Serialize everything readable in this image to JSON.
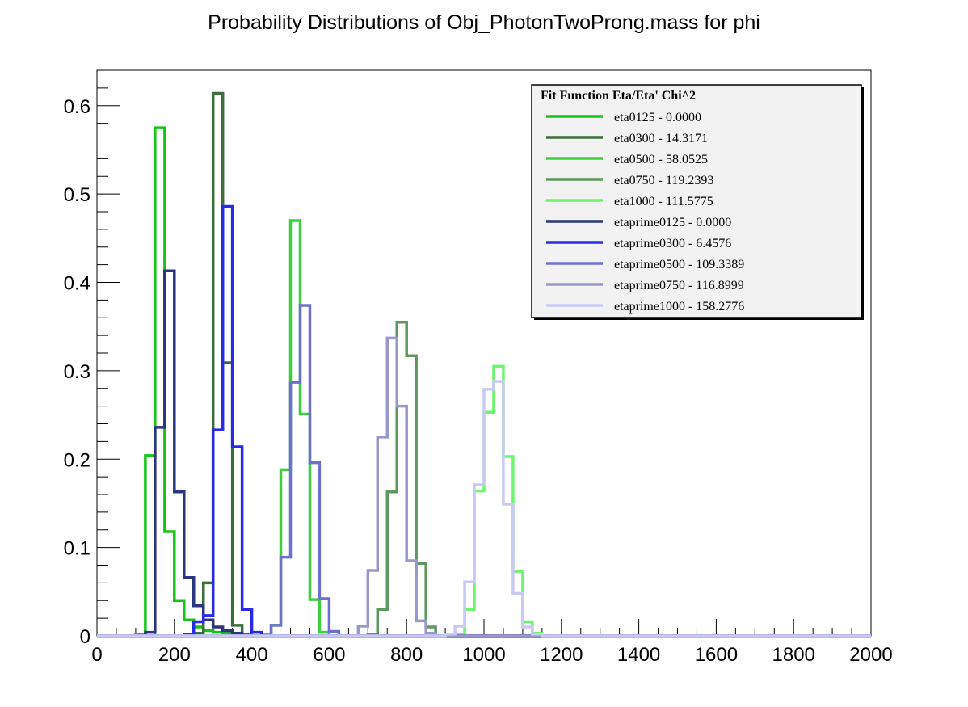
{
  "chart_data": {
    "type": "histogram",
    "title": "Probability Distributions of Obj_PhotonTwoProng.mass for phi",
    "xlabel": "",
    "ylabel": "",
    "xlim": [
      0,
      2000
    ],
    "ylim": [
      0,
      0.64
    ],
    "bin_width": 25,
    "x_ticks": [
      "0",
      "200",
      "400",
      "600",
      "800",
      "1000",
      "1200",
      "1400",
      "1600",
      "1800",
      "2000"
    ],
    "y_ticks": [
      "0",
      "0.1",
      "0.2",
      "0.3",
      "0.4",
      "0.5",
      "0.6"
    ],
    "legend": {
      "title": "Fit Function Eta/Eta' Chi^2",
      "position": "top-right",
      "entries": [
        "eta0125 - 0.0000",
        "eta0300 - 14.3171",
        "eta0500 - 58.0525",
        "eta0750 - 119.2393",
        "eta1000 - 111.5775",
        "etaprime0125 - 0.0000",
        "etaprime0300 - 6.4576",
        "etaprime0500 - 109.3389",
        "etaprime0750 - 116.8999",
        "etaprime1000 - 158.2776"
      ]
    },
    "series": [
      {
        "name": "eta0125",
        "color": "#17c417",
        "bins": [
          [
            75,
            0.0
          ],
          [
            100,
            0.002
          ],
          [
            125,
            0.204
          ],
          [
            150,
            0.575
          ],
          [
            175,
            0.118
          ],
          [
            200,
            0.04
          ],
          [
            225,
            0.018
          ],
          [
            250,
            0.01
          ],
          [
            275,
            0.006
          ],
          [
            300,
            0.004
          ],
          [
            325,
            0.003
          ],
          [
            350,
            0.002
          ]
        ]
      },
      {
        "name": "eta0300",
        "color": "#3c6e3c",
        "bins": [
          [
            225,
            0.0
          ],
          [
            250,
            0.003
          ],
          [
            275,
            0.06
          ],
          [
            300,
            0.614
          ],
          [
            325,
            0.309
          ],
          [
            350,
            0.012
          ],
          [
            375,
            0.002
          ]
        ]
      },
      {
        "name": "eta0500",
        "color": "#3ecf3e",
        "bins": [
          [
            425,
            0.002
          ],
          [
            450,
            0.012
          ],
          [
            475,
            0.188
          ],
          [
            500,
            0.47
          ],
          [
            525,
            0.251
          ],
          [
            550,
            0.041
          ],
          [
            575,
            0.004
          ]
        ]
      },
      {
        "name": "eta0750",
        "color": "#5e985e",
        "bins": [
          [
            675,
            0.0
          ],
          [
            700,
            0.002
          ],
          [
            725,
            0.03
          ],
          [
            750,
            0.163
          ],
          [
            775,
            0.355
          ],
          [
            800,
            0.317
          ],
          [
            825,
            0.082
          ],
          [
            850,
            0.01
          ]
        ]
      },
      {
        "name": "eta1000",
        "color": "#6df56d",
        "bins": [
          [
            900,
            0.0
          ],
          [
            925,
            0.002
          ],
          [
            950,
            0.03
          ],
          [
            975,
            0.164
          ],
          [
            1000,
            0.253
          ],
          [
            1025,
            0.305
          ],
          [
            1050,
            0.203
          ],
          [
            1075,
            0.073
          ],
          [
            1100,
            0.016
          ],
          [
            1125,
            0.003
          ]
        ]
      },
      {
        "name": "etaprime0125",
        "color": "#2b367e",
        "bins": [
          [
            100,
            0.0
          ],
          [
            125,
            0.004
          ],
          [
            150,
            0.236
          ],
          [
            175,
            0.413
          ],
          [
            200,
            0.163
          ],
          [
            225,
            0.066
          ],
          [
            250,
            0.034
          ],
          [
            275,
            0.018
          ],
          [
            300,
            0.01
          ],
          [
            325,
            0.006
          ],
          [
            350,
            0.003
          ]
        ]
      },
      {
        "name": "etaprime0300",
        "color": "#2a2ae6",
        "bins": [
          [
            225,
            0.002
          ],
          [
            250,
            0.016
          ],
          [
            275,
            0.023
          ],
          [
            300,
            0.233
          ],
          [
            325,
            0.486
          ],
          [
            350,
            0.214
          ],
          [
            375,
            0.03
          ],
          [
            400,
            0.004
          ]
        ]
      },
      {
        "name": "etaprime0500",
        "color": "#6f6fcf",
        "bins": [
          [
            425,
            0.0
          ],
          [
            450,
            0.012
          ],
          [
            475,
            0.089
          ],
          [
            500,
            0.287
          ],
          [
            525,
            0.374
          ],
          [
            550,
            0.196
          ],
          [
            575,
            0.042
          ],
          [
            600,
            0.005
          ]
        ]
      },
      {
        "name": "etaprime0750",
        "color": "#9898cc",
        "bins": [
          [
            650,
            0.0
          ],
          [
            675,
            0.011
          ],
          [
            700,
            0.074
          ],
          [
            725,
            0.225
          ],
          [
            750,
            0.337
          ],
          [
            775,
            0.26
          ],
          [
            800,
            0.085
          ],
          [
            825,
            0.017
          ],
          [
            850,
            0.003
          ]
        ]
      },
      {
        "name": "etaprime1000",
        "color": "#c9c9f4",
        "bins": [
          [
            900,
            0.002
          ],
          [
            925,
            0.011
          ],
          [
            950,
            0.061
          ],
          [
            975,
            0.171
          ],
          [
            1000,
            0.279
          ],
          [
            1025,
            0.288
          ],
          [
            1050,
            0.149
          ],
          [
            1075,
            0.048
          ],
          [
            1100,
            0.01
          ],
          [
            1125,
            0.002
          ]
        ]
      }
    ]
  }
}
